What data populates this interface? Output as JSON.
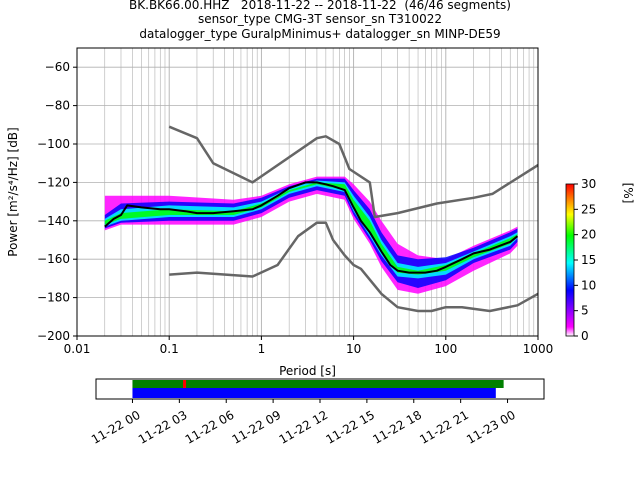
{
  "chart_data": {
    "type": "heatmap",
    "title_lines": [
      "BK.BK66.00.HHZ   2018-11-22 -- 2018-11-22  (46/46 segments)",
      "sensor_type CMG-3T sensor_sn T310022",
      "datalogger_type GuralpMinimus+ datalogger_sn MINP-DE59"
    ],
    "xlabel": "Period [s]",
    "ylabel": "Power [m²/s⁴/Hz] [dB]",
    "xscale": "log",
    "xlim": [
      0.01,
      1000
    ],
    "ylim": [
      -200,
      -50
    ],
    "x_ticks": [
      0.01,
      0.1,
      1,
      10,
      100,
      1000
    ],
    "x_tick_labels": [
      "0.01",
      "0.1",
      "1",
      "10",
      "100",
      "1000"
    ],
    "y_ticks": [
      -200,
      -180,
      -160,
      -140,
      -120,
      -100,
      -80,
      -60
    ],
    "y_tick_labels": [
      "−200",
      "−180",
      "−160",
      "−140",
      "−120",
      "−100",
      "−80",
      "−60"
    ],
    "grid": true,
    "colorbar": {
      "label": "[%]",
      "range": [
        0,
        30
      ],
      "ticks": [
        0,
        5,
        10,
        15,
        20,
        25,
        30
      ],
      "colormap": [
        "#ffffff",
        "#ff00ff",
        "#0000ff",
        "#00ffff",
        "#00ff00",
        "#ffff00",
        "#ff8000",
        "#ff0000"
      ]
    },
    "series": [
      {
        "name": "mode",
        "color": "#000000",
        "x": [
          0.02,
          0.025,
          0.03,
          0.035,
          0.05,
          0.08,
          0.1,
          0.15,
          0.2,
          0.3,
          0.5,
          0.8,
          1,
          1.5,
          2,
          3,
          4,
          5,
          6,
          8,
          10,
          12,
          15,
          20,
          25,
          30,
          40,
          60,
          80,
          100,
          150,
          200,
          300,
          500,
          600
        ],
        "y": [
          -143,
          -139,
          -137,
          -132,
          -133,
          -134,
          -134,
          -135,
          -136,
          -136,
          -135,
          -134,
          -132,
          -127,
          -123,
          -120,
          -120,
          -121,
          -122,
          -124,
          -133,
          -140,
          -146,
          -156,
          -163,
          -166,
          -167,
          -167,
          -166,
          -164,
          -160,
          -157,
          -155,
          -151,
          -148
        ]
      },
      {
        "name": "upper reference",
        "color": "#666666",
        "x": [
          0.1,
          0.2,
          0.3,
          0.8,
          4,
          5,
          7,
          9,
          15,
          17,
          30,
          80,
          200,
          320,
          1000
        ],
        "y": [
          -91,
          -97,
          -110,
          -120,
          -97,
          -96,
          -100,
          -113,
          -120,
          -138,
          -136,
          -131,
          -128,
          -126,
          -111
        ]
      },
      {
        "name": "lower reference",
        "color": "#666666",
        "x": [
          0.1,
          0.2,
          0.8,
          1.5,
          2.5,
          4,
          5,
          6,
          8,
          10,
          12,
          20,
          30,
          50,
          70,
          100,
          150,
          300,
          600,
          1000
        ],
        "y": [
          -168,
          -167,
          -169,
          -163,
          -148,
          -141,
          -141,
          -150,
          -158,
          -163,
          -165,
          -178,
          -185,
          -187,
          -187,
          -185,
          -185,
          -187,
          -184,
          -178
        ]
      }
    ],
    "density_bands": [
      {
        "color": "#ff00ff",
        "x": [
          0.02,
          0.03,
          0.1,
          0.5,
          1,
          2,
          4,
          8,
          10,
          15,
          20,
          30,
          50,
          100,
          200,
          500,
          600
        ],
        "y_low": [
          -145,
          -142,
          -142,
          -142,
          -138,
          -130,
          -126,
          -129,
          -139,
          -152,
          -164,
          -176,
          -178,
          -174,
          -166,
          -157,
          -153
        ],
        "y_high": [
          -127,
          -127,
          -127,
          -129,
          -127,
          -121,
          -117,
          -117,
          -121,
          -130,
          -140,
          -152,
          -158,
          -160,
          -153,
          -145,
          -143
        ]
      },
      {
        "color": "#0000ff",
        "x": [
          0.02,
          0.03,
          0.1,
          0.5,
          1,
          2,
          4,
          8,
          10,
          15,
          20,
          30,
          50,
          100,
          200,
          500,
          600
        ],
        "y_low": [
          -144,
          -141,
          -140,
          -140,
          -136,
          -128,
          -124,
          -127,
          -137,
          -150,
          -161,
          -172,
          -175,
          -171,
          -162,
          -155,
          -151
        ],
        "y_high": [
          -137,
          -131,
          -130,
          -131,
          -128,
          -122,
          -118,
          -118,
          -124,
          -134,
          -146,
          -158,
          -160,
          -159,
          -154,
          -146,
          -144
        ]
      },
      {
        "color": "#00ffff",
        "x": [
          0.02,
          0.03,
          0.1,
          0.5,
          1,
          2,
          4,
          8,
          10,
          15,
          20,
          30,
          50,
          100,
          200,
          500,
          600
        ],
        "y_low": [
          -143,
          -140,
          -138,
          -138,
          -134,
          -126,
          -122,
          -125,
          -135,
          -148,
          -158,
          -169,
          -170,
          -168,
          -160,
          -153,
          -149
        ],
        "y_high": [
          -139,
          -134,
          -132,
          -133,
          -130,
          -123,
          -119,
          -120,
          -127,
          -138,
          -150,
          -162,
          -164,
          -162,
          -156,
          -148,
          -146
        ]
      },
      {
        "color": "#00ff00",
        "x": [
          0.02,
          0.03,
          0.1,
          0.5,
          1,
          2,
          4,
          8,
          10,
          15,
          20,
          30,
          50,
          100,
          200,
          500,
          600
        ],
        "y_low": [
          -142,
          -139,
          -137,
          -137,
          -133,
          -125,
          -121,
          -124,
          -134,
          -146,
          -156,
          -167,
          -168,
          -166,
          -159,
          -152,
          -148
        ],
        "y_high": [
          -140,
          -136,
          -134,
          -135,
          -131,
          -124,
          -120,
          -121,
          -129,
          -140,
          -152,
          -164,
          -166,
          -163,
          -157,
          -149,
          -147
        ]
      }
    ],
    "gaps_panel": {
      "x_ticks": [
        "2018-11-22T00:00",
        "2018-11-22T03:00",
        "2018-11-22T06:00",
        "2018-11-22T09:00",
        "2018-11-22T12:00",
        "2018-11-22T15:00",
        "2018-11-22T18:00",
        "2018-11-22T21:00",
        "2018-11-23T00:00"
      ],
      "x_tick_labels": [
        "11-22 00",
        "11-22 03",
        "11-22 06",
        "11-22 09",
        "11-22 12",
        "11-22 15",
        "11-22 18",
        "11-22 21",
        "11-23 00"
      ],
      "xlim": [
        "2018-11-21T21:40",
        "2018-11-23T02:20"
      ],
      "data_bar": {
        "color": "#008000",
        "start": "2018-11-22T00:00",
        "end": "2018-11-22T23:45"
      },
      "psd_bar": {
        "color": "#0000ff",
        "start": "2018-11-22T00:00",
        "end": "2018-11-22T23:15"
      },
      "marker": {
        "color": "#ff0000",
        "time": "2018-11-22T03:20"
      }
    }
  }
}
